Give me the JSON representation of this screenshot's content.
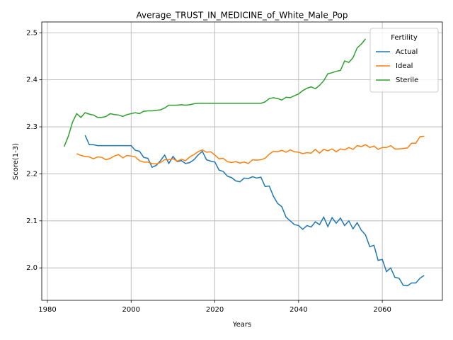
{
  "chart_data": {
    "type": "line",
    "title": "Average_TRUST_IN_MEDICINE_of_White_Male_Pop",
    "xlabel": "Years",
    "ylabel": "Score(1-3)",
    "legend_title": "Fertility",
    "legend": "upper right",
    "grid": true,
    "xlim": [
      1978.65,
      2074.35
    ],
    "ylim": [
      1.931,
      2.523
    ],
    "xticks": [
      1980,
      2000,
      2020,
      2040,
      2060
    ],
    "yticks": [
      {
        "value": 2,
        "label": "2.0"
      },
      2.1,
      2.2,
      2.3,
      2.4,
      2.5
    ],
    "series": [
      {
        "name": "Actual",
        "color": "#1f77b4",
        "x": [
          1989,
          1990,
          1991,
          1992,
          1993,
          1994,
          1995,
          1996,
          1997,
          1998,
          1999,
          2000,
          2001,
          2002,
          2003,
          2004,
          2005,
          2006,
          2007,
          2008,
          2009,
          2010,
          2011,
          2012,
          2013,
          2014,
          2015,
          2016,
          2017,
          2018,
          2019,
          2020,
          2021,
          2022,
          2023,
          2024,
          2025,
          2026,
          2027,
          2028,
          2029,
          2030,
          2031,
          2032,
          2033,
          2034,
          2035,
          2036,
          2037,
          2038,
          2039,
          2040,
          2041,
          2042,
          2043,
          2044,
          2045,
          2046,
          2047,
          2048,
          2049,
          2050,
          2051,
          2052,
          2053,
          2054,
          2055,
          2056,
          2057,
          2058,
          2059,
          2060,
          2061,
          2062,
          2063,
          2064,
          2065,
          2066,
          2067,
          2068,
          2069,
          2070
        ],
        "values": [
          2.282,
          2.262,
          2.262,
          2.26,
          2.26,
          2.26,
          2.26,
          2.26,
          2.26,
          2.26,
          2.26,
          2.26,
          2.25,
          2.248,
          2.235,
          2.233,
          2.214,
          2.218,
          2.228,
          2.24,
          2.222,
          2.237,
          2.226,
          2.228,
          2.222,
          2.224,
          2.23,
          2.24,
          2.248,
          2.23,
          2.227,
          2.225,
          2.208,
          2.205,
          2.195,
          2.192,
          2.185,
          2.183,
          2.191,
          2.19,
          2.194,
          2.191,
          2.193,
          2.173,
          2.174,
          2.152,
          2.137,
          2.13,
          2.108,
          2.1,
          2.092,
          2.09,
          2.082,
          2.09,
          2.087,
          2.098,
          2.092,
          2.108,
          2.088,
          2.107,
          2.095,
          2.106,
          2.09,
          2.1,
          2.083,
          2.096,
          2.08,
          2.07,
          2.045,
          2.048,
          2.016,
          2.018,
          1.992,
          2.0,
          1.98,
          1.978,
          1.963,
          1.962,
          1.968,
          1.968,
          1.978,
          1.984
        ]
      },
      {
        "name": "Ideal",
        "color": "#ff7f0e",
        "x": [
          1987,
          1988,
          1989,
          1990,
          1991,
          1992,
          1993,
          1994,
          1995,
          1996,
          1997,
          1998,
          1999,
          2000,
          2001,
          2002,
          2003,
          2004,
          2005,
          2006,
          2007,
          2008,
          2009,
          2010,
          2011,
          2012,
          2013,
          2014,
          2015,
          2016,
          2017,
          2018,
          2019,
          2020,
          2021,
          2022,
          2023,
          2024,
          2025,
          2026,
          2027,
          2028,
          2029,
          2030,
          2031,
          2032,
          2033,
          2034,
          2035,
          2036,
          2037,
          2038,
          2039,
          2040,
          2041,
          2042,
          2043,
          2044,
          2045,
          2046,
          2047,
          2048,
          2049,
          2050,
          2051,
          2052,
          2053,
          2054,
          2055,
          2056,
          2057,
          2058,
          2059,
          2060,
          2061,
          2062,
          2063,
          2064,
          2065,
          2066,
          2067,
          2068,
          2069,
          2070
        ],
        "values": [
          2.243,
          2.239,
          2.237,
          2.236,
          2.232,
          2.236,
          2.235,
          2.23,
          2.233,
          2.238,
          2.241,
          2.234,
          2.239,
          2.238,
          2.236,
          2.228,
          2.225,
          2.225,
          2.222,
          2.221,
          2.224,
          2.23,
          2.23,
          2.232,
          2.227,
          2.231,
          2.228,
          2.236,
          2.241,
          2.247,
          2.251,
          2.246,
          2.247,
          2.24,
          2.232,
          2.233,
          2.226,
          2.224,
          2.226,
          2.223,
          2.225,
          2.222,
          2.23,
          2.229,
          2.23,
          2.233,
          2.242,
          2.248,
          2.247,
          2.25,
          2.246,
          2.251,
          2.247,
          2.246,
          2.243,
          2.245,
          2.244,
          2.252,
          2.244,
          2.252,
          2.249,
          2.253,
          2.247,
          2.253,
          2.251,
          2.256,
          2.252,
          2.26,
          2.258,
          2.262,
          2.256,
          2.259,
          2.252,
          2.256,
          2.256,
          2.26,
          2.253,
          2.253,
          2.254,
          2.255,
          2.265,
          2.265,
          2.279,
          2.28
        ]
      },
      {
        "name": "Sterile",
        "color": "#2ca02c",
        "x": [
          1984,
          1985,
          1986,
          1987,
          1988,
          1989,
          1990,
          1991,
          1992,
          1993,
          1994,
          1995,
          1996,
          1997,
          1998,
          1999,
          2000,
          2001,
          2002,
          2003,
          2004,
          2005,
          2006,
          2007,
          2008,
          2009,
          2010,
          2011,
          2012,
          2013,
          2014,
          2015,
          2016,
          2017,
          2018,
          2019,
          2020,
          2021,
          2022,
          2023,
          2024,
          2025,
          2026,
          2027,
          2028,
          2029,
          2030,
          2031,
          2032,
          2033,
          2034,
          2035,
          2036,
          2037,
          2038,
          2039,
          2040,
          2041,
          2042,
          2043,
          2044,
          2045,
          2046,
          2047,
          2048,
          2049,
          2050,
          2051,
          2052,
          2053,
          2054,
          2055,
          2056
        ],
        "values": [
          2.258,
          2.28,
          2.31,
          2.328,
          2.32,
          2.33,
          2.327,
          2.325,
          2.32,
          2.32,
          2.322,
          2.328,
          2.326,
          2.325,
          2.322,
          2.326,
          2.328,
          2.33,
          2.328,
          2.333,
          2.334,
          2.334,
          2.335,
          2.336,
          2.34,
          2.346,
          2.346,
          2.346,
          2.347,
          2.346,
          2.347,
          2.349,
          2.35,
          2.35,
          2.35,
          2.35,
          2.35,
          2.35,
          2.35,
          2.35,
          2.35,
          2.35,
          2.35,
          2.35,
          2.35,
          2.35,
          2.35,
          2.35,
          2.353,
          2.36,
          2.362,
          2.36,
          2.357,
          2.363,
          2.362,
          2.366,
          2.37,
          2.377,
          2.382,
          2.385,
          2.381,
          2.388,
          2.398,
          2.413,
          2.415,
          2.418,
          2.42,
          2.44,
          2.437,
          2.447,
          2.468,
          2.476,
          2.487
        ]
      }
    ]
  }
}
